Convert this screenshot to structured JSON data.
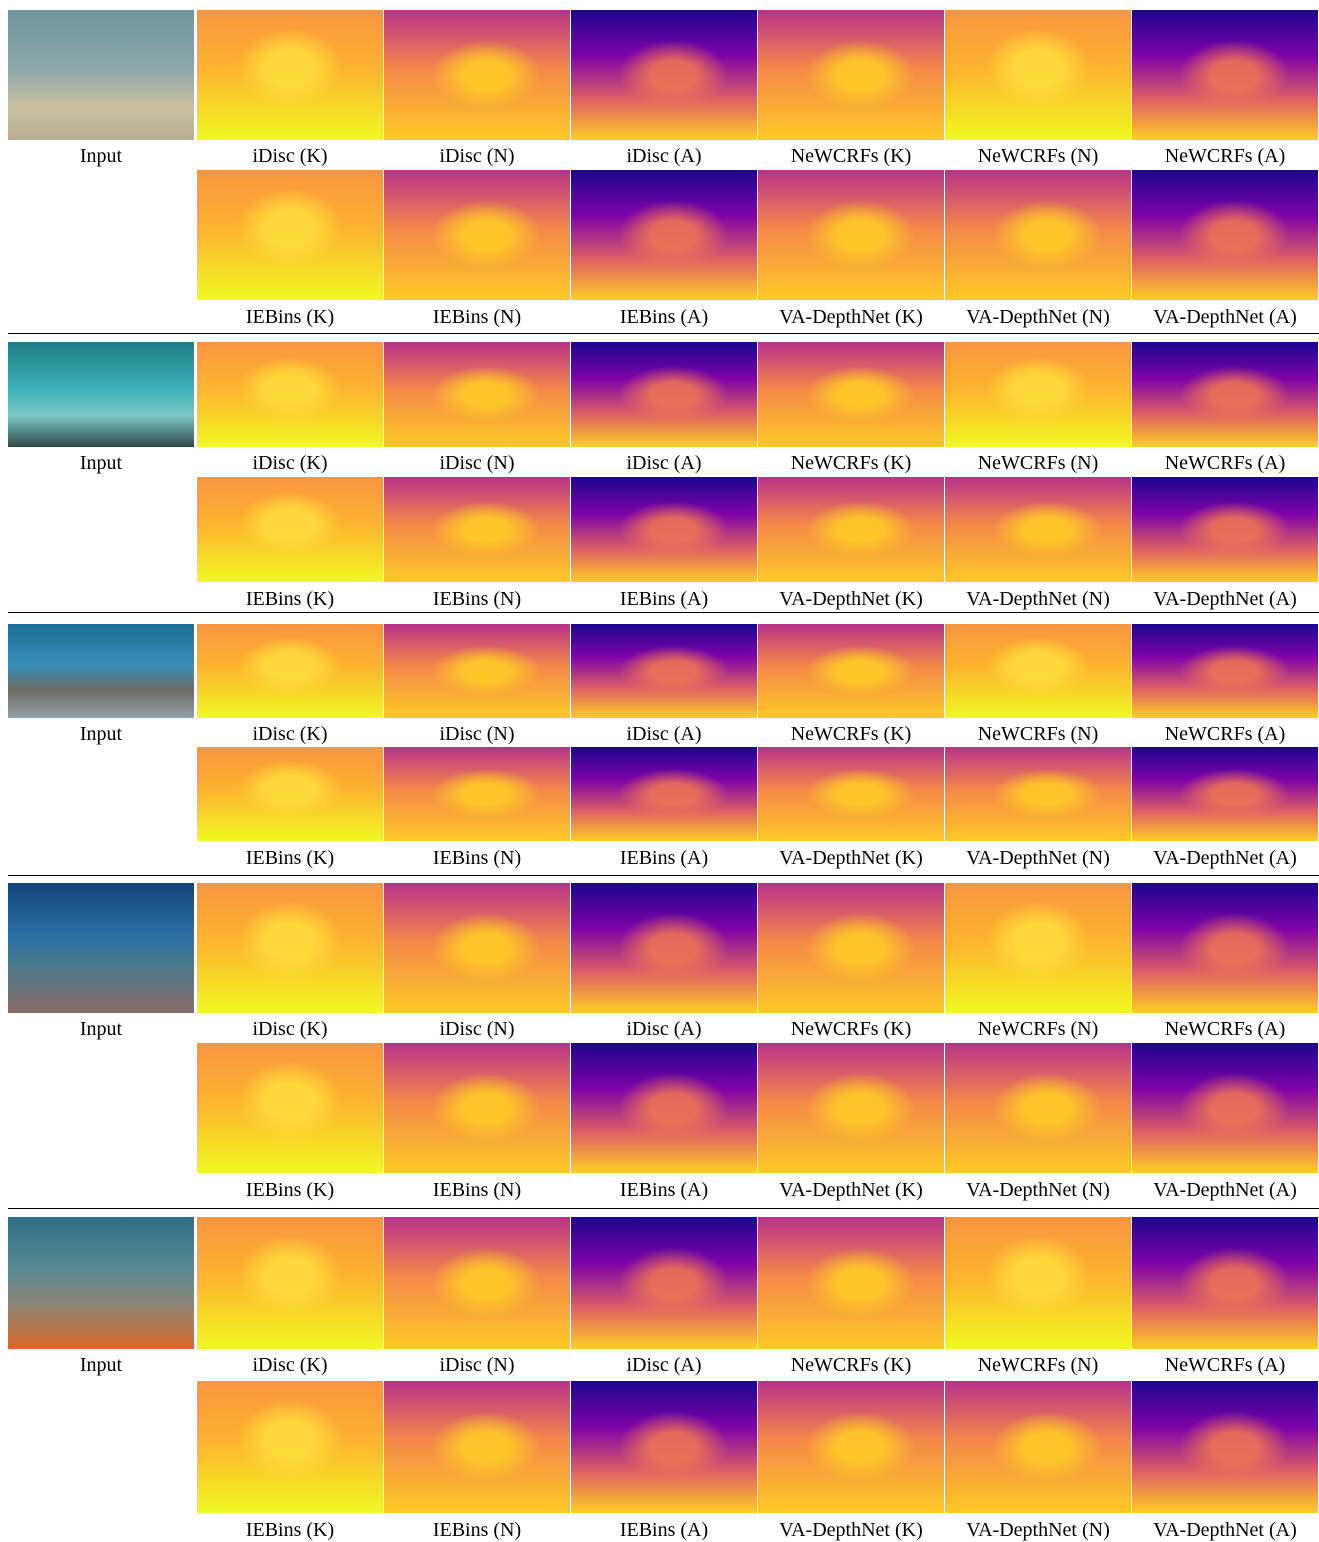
{
  "blocks": [
    {
      "input_label": "Input",
      "row1_labels": [
        "iDisc (K)",
        "iDisc (N)",
        "iDisc (A)",
        "NeWCRFs (K)",
        "NeWCRFs (N)",
        "NeWCRFs (A)"
      ],
      "row2_labels": [
        "IEBins (K)",
        "IEBins (N)",
        "IEBins (A)",
        "VA-DepthNet (K)",
        "VA-DepthNet (N)",
        "VA-DepthNet (A)"
      ]
    },
    {
      "input_label": "Input",
      "row1_labels": [
        "iDisc (K)",
        "iDisc (N)",
        "iDisc (A)",
        "NeWCRFs (K)",
        "NeWCRFs (N)",
        "NeWCRFs (A)"
      ],
      "row2_labels": [
        "IEBins (K)",
        "IEBins (N)",
        "IEBins (A)",
        "VA-DepthNet (K)",
        "VA-DepthNet (N)",
        "VA-DepthNet (A)"
      ]
    },
    {
      "input_label": "Input",
      "row1_labels": [
        "iDisc (K)",
        "iDisc (N)",
        "iDisc (A)",
        "NeWCRFs (K)",
        "NeWCRFs (N)",
        "NeWCRFs (A)"
      ],
      "row2_labels": [
        "IEBins (K)",
        "IEBins (N)",
        "IEBins (A)",
        "VA-DepthNet (K)",
        "VA-DepthNet (N)",
        "VA-DepthNet (A)"
      ]
    },
    {
      "input_label": "Input",
      "row1_labels": [
        "iDisc (K)",
        "iDisc (N)",
        "iDisc (A)",
        "NeWCRFs (K)",
        "NeWCRFs (N)",
        "NeWCRFs (A)"
      ],
      "row2_labels": [
        "IEBins (K)",
        "IEBins (N)",
        "IEBins (A)",
        "VA-DepthNet (K)",
        "VA-DepthNet (N)",
        "VA-DepthNet (A)"
      ]
    },
    {
      "input_label": "Input",
      "row1_labels": [
        "iDisc (K)",
        "iDisc (N)",
        "iDisc (A)",
        "NeWCRFs (K)",
        "NeWCRFs (N)",
        "NeWCRFs (A)"
      ],
      "row2_labels": [
        "IEBins (K)",
        "IEBins (N)",
        "IEBins (A)",
        "VA-DepthNet (K)",
        "VA-DepthNet (N)",
        "VA-DepthNet (A)"
      ]
    }
  ]
}
